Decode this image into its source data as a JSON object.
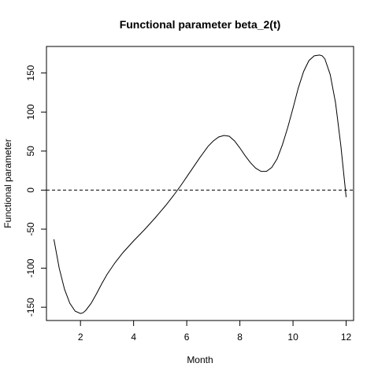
{
  "chart_data": {
    "type": "line",
    "title": "Functional parameter beta_2(t)",
    "xlabel": "Month",
    "ylabel": "Functional parameter",
    "xlim": [
      0.72,
      12.28
    ],
    "ylim": [
      -167,
      184
    ],
    "x_ticks": [
      2,
      4,
      6,
      8,
      10,
      12
    ],
    "y_ticks": [
      -150,
      -100,
      -50,
      0,
      50,
      100,
      150
    ],
    "grid": false,
    "legend": "none",
    "reference_line": {
      "y": 0,
      "style": "dashed"
    },
    "series": [
      {
        "x": [
          1.0,
          1.2,
          1.4,
          1.6,
          1.8,
          2.0,
          2.1,
          2.2,
          2.4,
          2.6,
          2.8,
          3.0,
          3.3,
          3.6,
          4.0,
          4.4,
          4.8,
          5.0,
          5.2,
          5.5,
          5.8,
          6.0,
          6.2,
          6.5,
          6.8,
          7.0,
          7.2,
          7.4,
          7.6,
          7.8,
          8.0,
          8.2,
          8.4,
          8.6,
          8.8,
          9.0,
          9.2,
          9.4,
          9.6,
          9.8,
          10.0,
          10.2,
          10.4,
          10.6,
          10.8,
          11.0,
          11.1,
          11.2,
          11.4,
          11.6,
          11.8,
          12.0
        ],
        "y": [
          -63,
          -100,
          -127,
          -145,
          -155,
          -158,
          -157,
          -154,
          -145,
          -133,
          -120,
          -108,
          -93,
          -80,
          -65,
          -51,
          -36,
          -28,
          -20,
          -7,
          7,
          17,
          27,
          42,
          56,
          63,
          68,
          70,
          69,
          63,
          54,
          44,
          35,
          28,
          24,
          24,
          29,
          40,
          58,
          80,
          105,
          131,
          152,
          166,
          172,
          173,
          172,
          168,
          148,
          112,
          57,
          -9
        ]
      }
    ]
  }
}
